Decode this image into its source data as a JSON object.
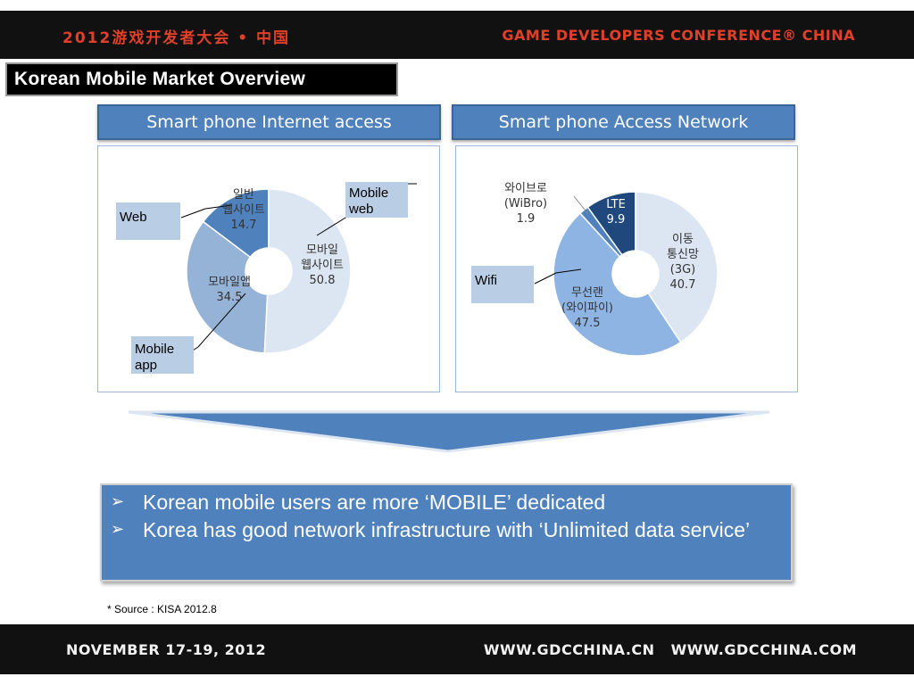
{
  "header": {
    "left_text": "2012游戏开发者大会 • 中国",
    "right_text": "GAME DEVELOPERS CONFERENCE® CHINA"
  },
  "slide_title": "Korean Mobile Market Overview",
  "panels": {
    "left_header": "Smart phone Internet access",
    "right_header": "Smart phone Access Network"
  },
  "callouts": {
    "mobile_web": "Mobile web",
    "web": "Web",
    "mobile_app": "Mobile app",
    "wifi": "Wifi"
  },
  "bullets": [
    "Korean mobile users are more ‘MOBILE’ dedicated",
    "Korea has good network infrastructure with ‘Unlimited data service’"
  ],
  "bullet_marker": "➢",
  "source": "* Source : KISA 2012.8",
  "footer": {
    "left_text": "NOVEMBER 17-19, 2012",
    "right_text": "WWW.GDCCHINA.CN WWW.GDCCHINA.COM"
  },
  "colors": {
    "panel_blue": "#4f81bd",
    "callout_blue": "#b9cde5",
    "brand_red": "#e0402a"
  },
  "chart_data": [
    {
      "type": "pie",
      "title": "Smart phone Internet access",
      "slices": [
        {
          "label": [
            "모바일",
            "웹사이트"
          ],
          "value": 50.8,
          "color": "#dce6f2"
        },
        {
          "label": [
            "모바일앱"
          ],
          "value": 34.5,
          "color": "#95b3d7"
        },
        {
          "label": [
            "일반",
            "웹사이트"
          ],
          "value": 14.7,
          "color": "#4f81bd"
        }
      ]
    },
    {
      "type": "pie",
      "title": "Smart phone Access Network",
      "slices": [
        {
          "label": [
            "이동",
            "통신망",
            "(3G)"
          ],
          "value": 40.7,
          "color": "#dce6f2"
        },
        {
          "label": [
            "무선랜",
            "(와이파이)"
          ],
          "value": 47.5,
          "color": "#8eb4e3"
        },
        {
          "label": [
            "와이브로",
            "(WiBro)"
          ],
          "value": 1.9,
          "color": "#4f81bd"
        },
        {
          "label": [
            "LTE"
          ],
          "value": 9.9,
          "color": "#1f497d"
        }
      ]
    }
  ]
}
